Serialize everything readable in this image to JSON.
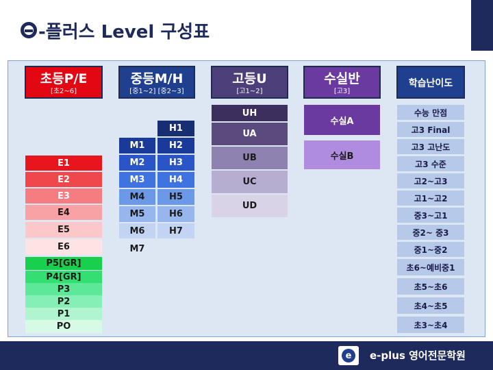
{
  "title": {
    "logo_letter": "e",
    "text": "-플러스 Level 구성표"
  },
  "headers": {
    "elementary": {
      "main": "초등P/E",
      "sub": "[초2~6]",
      "color": "#e30613"
    },
    "middle": {
      "main": "중등M/H",
      "sub": "[중1~2] [중2~3]",
      "color": "#1f3f8f"
    },
    "high": {
      "main": "고등U",
      "sub": "[고1~2]",
      "color": "#4c3f7a"
    },
    "suneung": {
      "main": "수실반",
      "sub": "[고3]",
      "color": "#6a3aa0"
    },
    "difficulty": {
      "main": "학습난이도",
      "color": "#1f3f8f"
    }
  },
  "levels": {
    "E1": "E1",
    "E2": "E2",
    "E3": "E3",
    "E4": "E4",
    "E5": "E5",
    "E6": "E6",
    "P5": "P5[GR]",
    "P4": "P4[GR]",
    "P3": "P3",
    "P2": "P2",
    "P1": "P1",
    "P0": "PO",
    "M1": "M1",
    "M2": "M2",
    "M3": "M3",
    "M4": "M4",
    "M5": "M5",
    "M6": "M6",
    "M7": "M7",
    "H1": "H1",
    "H2": "H2",
    "H3": "H3",
    "H4": "H4",
    "H5": "H5",
    "H6": "H6",
    "H7": "H7",
    "UH": "UH",
    "UA": "UA",
    "UB": "UB",
    "UC": "UC",
    "UD": "UD",
    "SA": "수실A",
    "SB": "수실B"
  },
  "difficulty": [
    "수능 만점",
    "고3 Final",
    "고3 고난도",
    "고3 수준",
    "고2~고3",
    "고1~고2",
    "중3~고1",
    "중2~ 중3",
    "중1~중2",
    "초6~예비중1",
    "초5~초6",
    "초4~초5",
    "초3~초4"
  ],
  "footer": {
    "logo": "e",
    "text": "e-plus 영어전문학원"
  }
}
